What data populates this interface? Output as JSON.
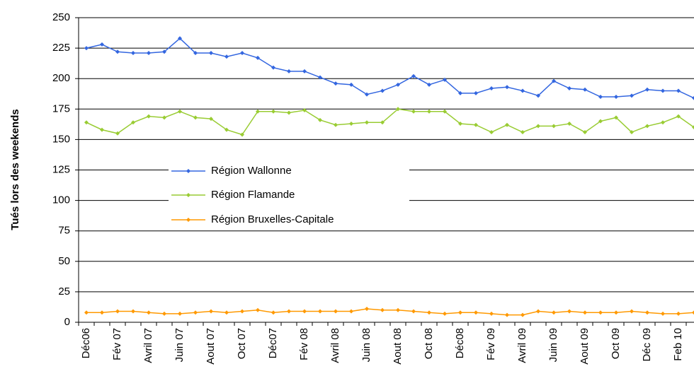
{
  "chart_data": {
    "type": "line",
    "ylabel": "Tués lors des weekends",
    "categories": [
      "Déc06",
      null,
      "Fév 07",
      null,
      "Avril 07",
      null,
      "Juin 07",
      null,
      "Aout 07",
      null,
      "Oct 07",
      null,
      "Déc07",
      null,
      "Fév 08",
      null,
      "Avril 08",
      null,
      "Juin 08",
      null,
      "Aout 08",
      null,
      "Oct 08",
      null,
      "Déc08",
      null,
      "Fév 09",
      null,
      "Avril 09",
      null,
      "Juin 09",
      null,
      "Aout 09",
      null,
      "Oct 09",
      null,
      "Déc 09",
      null,
      "Feb 10",
      null
    ],
    "series": [
      {
        "name": "Région Wallonne",
        "color": "#3366e0",
        "values": [
          225,
          228,
          222,
          221,
          221,
          222,
          233,
          221,
          221,
          218,
          221,
          217,
          209,
          206,
          206,
          201,
          196,
          195,
          187,
          190,
          195,
          202,
          195,
          199,
          188,
          188,
          192,
          193,
          190,
          186,
          198,
          192,
          191,
          185,
          185,
          186,
          191,
          190,
          190,
          184
        ]
      },
      {
        "name": "Région Flamande",
        "color": "#99cc33",
        "values": [
          164,
          158,
          155,
          164,
          169,
          168,
          173,
          168,
          167,
          158,
          154,
          173,
          173,
          172,
          174,
          166,
          162,
          163,
          164,
          164,
          175,
          173,
          173,
          173,
          163,
          162,
          156,
          162,
          156,
          161,
          161,
          163,
          156,
          165,
          168,
          156,
          161,
          164,
          169,
          160
        ]
      },
      {
        "name": "Région Bruxelles-Capitale",
        "color": "#ff9900",
        "values": [
          8,
          8,
          9,
          9,
          8,
          7,
          7,
          8,
          9,
          8,
          9,
          10,
          8,
          9,
          9,
          9,
          9,
          9,
          11,
          10,
          10,
          9,
          8,
          7,
          8,
          8,
          7,
          6,
          6,
          9,
          8,
          9,
          8,
          8,
          8,
          9,
          8,
          7,
          7,
          8
        ]
      }
    ],
    "ylim": [
      0,
      250
    ],
    "yticks": [
      0,
      25,
      50,
      75,
      100,
      125,
      150,
      175,
      200,
      225,
      250
    ],
    "grid": true
  }
}
